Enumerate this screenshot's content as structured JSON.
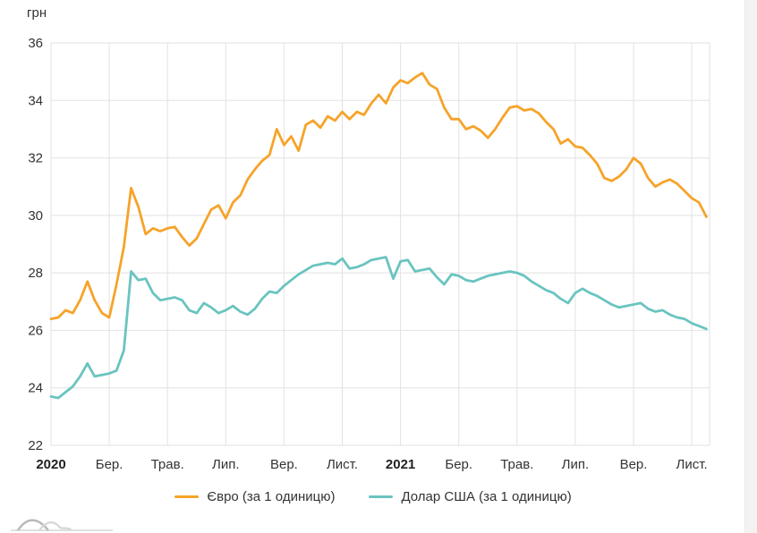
{
  "chart_data": {
    "type": "line",
    "title": "",
    "ylabel": "грн",
    "xlabel": "",
    "ylim": [
      22,
      36
    ],
    "y_ticks": [
      36,
      34,
      32,
      30,
      28,
      26,
      24,
      22
    ],
    "grid": true,
    "legend_position": "bottom",
    "x_ticks": [
      {
        "m": 0,
        "label": "2020",
        "bold": true
      },
      {
        "m": 2,
        "label": "Бер.",
        "bold": false
      },
      {
        "m": 4,
        "label": "Трав.",
        "bold": false
      },
      {
        "m": 6,
        "label": "Лип.",
        "bold": false
      },
      {
        "m": 8,
        "label": "Вер.",
        "bold": false
      },
      {
        "m": 10,
        "label": "Лист.",
        "bold": false
      },
      {
        "m": 12,
        "label": "2021",
        "bold": true
      },
      {
        "m": 14,
        "label": "Бер.",
        "bold": false
      },
      {
        "m": 16,
        "label": "Трав.",
        "bold": false
      },
      {
        "m": 18,
        "label": "Лип.",
        "bold": false
      },
      {
        "m": 20,
        "label": "Вер.",
        "bold": false
      },
      {
        "m": 22,
        "label": "Лист.",
        "bold": false
      }
    ],
    "x_start_month": 0,
    "x_step_month": 0.25,
    "series": [
      {
        "id": "eur",
        "name": "Євро (за 1 одиницю)",
        "color": "#f6a32a",
        "values": [
          26.4,
          26.45,
          26.7,
          26.6,
          27.05,
          27.7,
          27.05,
          26.6,
          26.45,
          27.6,
          28.9,
          30.95,
          30.3,
          29.35,
          29.55,
          29.45,
          29.55,
          29.6,
          29.25,
          28.95,
          29.2,
          29.7,
          30.2,
          30.35,
          29.9,
          30.45,
          30.7,
          31.25,
          31.6,
          31.9,
          32.1,
          33.0,
          32.45,
          32.75,
          32.25,
          33.15,
          33.3,
          33.05,
          33.45,
          33.3,
          33.6,
          33.35,
          33.6,
          33.5,
          33.9,
          34.2,
          33.9,
          34.45,
          34.7,
          34.6,
          34.8,
          34.95,
          34.55,
          34.4,
          33.75,
          33.35,
          33.35,
          33.0,
          33.1,
          32.95,
          32.7,
          33.0,
          33.4,
          33.75,
          33.8,
          33.65,
          33.7,
          33.55,
          33.25,
          33.0,
          32.5,
          32.65,
          32.4,
          32.35,
          32.1,
          31.8,
          31.3,
          31.2,
          31.35,
          31.6,
          32.0,
          31.8,
          31.3,
          31.0,
          31.15,
          31.25,
          31.1,
          30.85,
          30.6,
          30.45,
          29.95
        ]
      },
      {
        "id": "usd",
        "name": "Долар США (за 1 одиницю)",
        "color": "#6ac4c0",
        "values": [
          23.7,
          23.65,
          23.85,
          24.05,
          24.4,
          24.85,
          24.4,
          24.45,
          24.5,
          24.6,
          25.3,
          28.05,
          27.75,
          27.8,
          27.3,
          27.05,
          27.1,
          27.15,
          27.05,
          26.7,
          26.6,
          26.95,
          26.8,
          26.6,
          26.7,
          26.85,
          26.65,
          26.55,
          26.75,
          27.1,
          27.35,
          27.3,
          27.55,
          27.75,
          27.95,
          28.1,
          28.25,
          28.3,
          28.35,
          28.3,
          28.5,
          28.15,
          28.2,
          28.3,
          28.45,
          28.5,
          28.55,
          27.8,
          28.4,
          28.45,
          28.05,
          28.1,
          28.15,
          27.85,
          27.6,
          27.95,
          27.9,
          27.75,
          27.7,
          27.8,
          27.9,
          27.95,
          28.0,
          28.05,
          28.0,
          27.9,
          27.7,
          27.55,
          27.4,
          27.3,
          27.1,
          26.95,
          27.3,
          27.45,
          27.3,
          27.2,
          27.05,
          26.9,
          26.8,
          26.85,
          26.9,
          26.95,
          26.75,
          26.65,
          26.7,
          26.55,
          26.45,
          26.4,
          26.25,
          26.15,
          26.05
        ]
      }
    ]
  },
  "colors": {
    "grid": "#e2e2e2",
    "tick_text": "#333333",
    "year_text": "#222222",
    "logo_gray_dark": "#b9b9b9",
    "logo_gray_light": "#d6d6d6"
  }
}
